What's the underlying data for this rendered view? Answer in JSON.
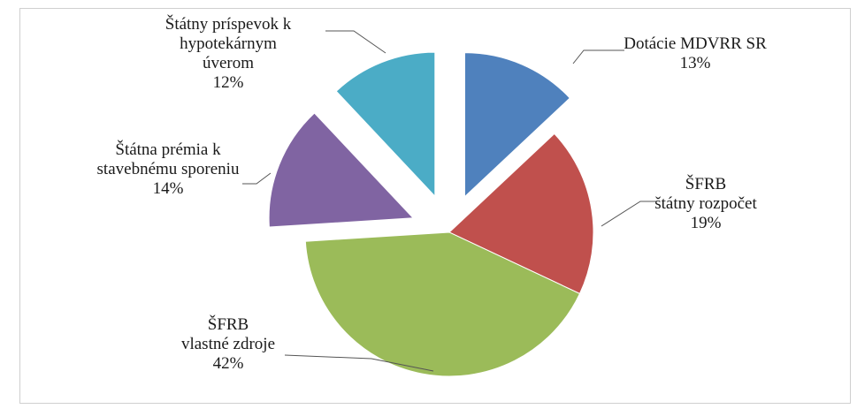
{
  "chart_data": {
    "type": "pie",
    "title": "",
    "slices": [
      {
        "name": "Dotácie MDVRR SR",
        "pct_label": "13%",
        "value": 13,
        "color": "#4f81bd",
        "exploded": true
      },
      {
        "name": "ŠFRB\nštátny rozpočet",
        "pct_label": "19%",
        "value": 19,
        "color": "#c0504d",
        "exploded": false
      },
      {
        "name": "ŠFRB\nvlastné zdroje",
        "pct_label": "42%",
        "value": 42,
        "color": "#9bbb59",
        "exploded": false
      },
      {
        "name": "Štátna prémia k\nstavebnému sporeniu",
        "pct_label": "14%",
        "value": 14,
        "color": "#8064a2",
        "exploded": true
      },
      {
        "name": "Štátny príspevok k\nhypotekárnym\núverom",
        "pct_label": "12%",
        "value": 12,
        "color": "#4bacc6",
        "exploded": true
      }
    ],
    "legend": "none"
  }
}
